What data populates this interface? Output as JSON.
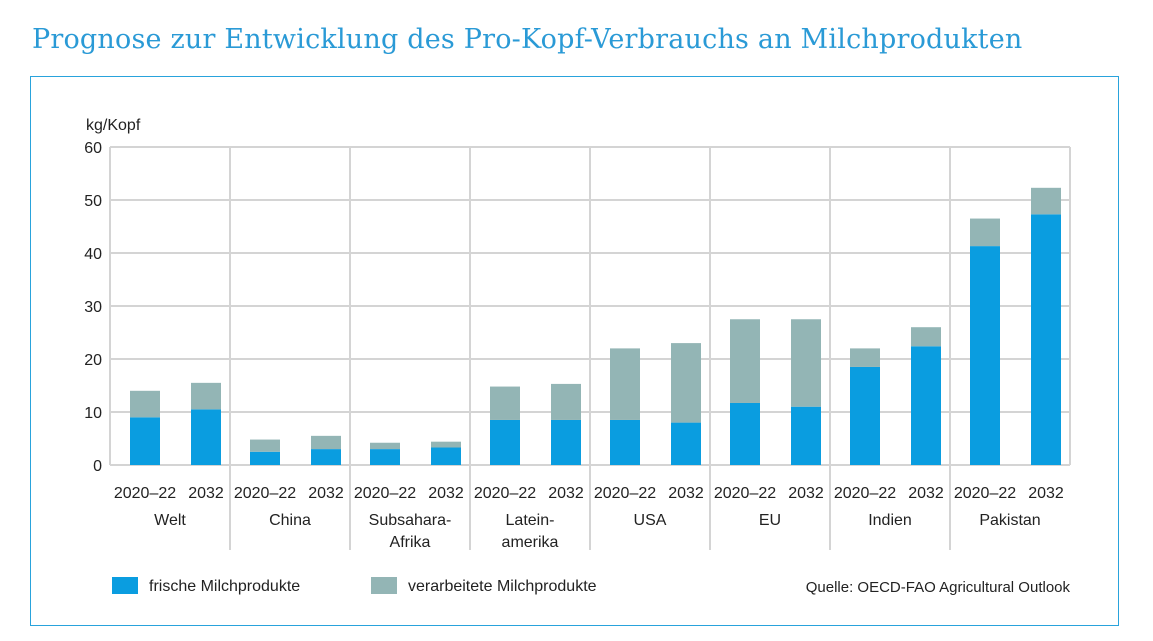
{
  "title": "Prognose zur Entwicklung des Pro-Kopf-Verbrauchs an Milchprodukten",
  "source": "Quelle: OECD-FAO Agricultural Outlook",
  "colors": {
    "title": "#2a9ad6",
    "frische": "#0a9de0",
    "verarbeitete": "#93b5b5",
    "grid": "#d4d4d4",
    "frame": "#29a3dc"
  },
  "chart_data": {
    "type": "bar",
    "stacked": true,
    "ylabel": "kg/Kopf",
    "ylim": [
      0,
      60
    ],
    "yticks": [
      0,
      10,
      20,
      30,
      40,
      50,
      60
    ],
    "grid": true,
    "legend_position": "bottom-left",
    "groups": [
      {
        "name_lines": [
          "Welt"
        ],
        "bars": [
          {
            "label": "2020–22",
            "frische": 9.0,
            "verarbeitete": 5.0
          },
          {
            "label": "2032",
            "frische": 10.5,
            "verarbeitete": 5.0
          }
        ]
      },
      {
        "name_lines": [
          "China"
        ],
        "bars": [
          {
            "label": "2020–22",
            "frische": 2.5,
            "verarbeitete": 2.3
          },
          {
            "label": "2032",
            "frische": 3.0,
            "verarbeitete": 2.5
          }
        ]
      },
      {
        "name_lines": [
          "Subsahara-",
          "Afrika"
        ],
        "bars": [
          {
            "label": "2020–22",
            "frische": 3.0,
            "verarbeitete": 1.2
          },
          {
            "label": "2032",
            "frische": 3.3,
            "verarbeitete": 1.1
          }
        ]
      },
      {
        "name_lines": [
          "Latein-",
          "amerika"
        ],
        "bars": [
          {
            "label": "2020–22",
            "frische": 8.5,
            "verarbeitete": 6.3
          },
          {
            "label": "2032",
            "frische": 8.5,
            "verarbeitete": 6.8
          }
        ]
      },
      {
        "name_lines": [
          "USA"
        ],
        "bars": [
          {
            "label": "2020–22",
            "frische": 8.5,
            "verarbeitete": 13.5
          },
          {
            "label": "2032",
            "frische": 8.0,
            "verarbeitete": 15.0
          }
        ]
      },
      {
        "name_lines": [
          "EU"
        ],
        "bars": [
          {
            "label": "2020–22",
            "frische": 11.7,
            "verarbeitete": 15.8
          },
          {
            "label": "2032",
            "frische": 11.0,
            "verarbeitete": 16.5
          }
        ]
      },
      {
        "name_lines": [
          "Indien"
        ],
        "bars": [
          {
            "label": "2020–22",
            "frische": 18.5,
            "verarbeitete": 3.5
          },
          {
            "label": "2032",
            "frische": 22.4,
            "verarbeitete": 3.6
          }
        ]
      },
      {
        "name_lines": [
          "Pakistan"
        ],
        "bars": [
          {
            "label": "2020–22",
            "frische": 41.3,
            "verarbeitete": 5.2
          },
          {
            "label": "2032",
            "frische": 47.3,
            "verarbeitete": 5.0
          }
        ]
      }
    ],
    "series": [
      {
        "key": "frische",
        "name": "frische Milchprodukte"
      },
      {
        "key": "verarbeitete",
        "name": "verarbeitete Milchprodukte"
      }
    ]
  }
}
